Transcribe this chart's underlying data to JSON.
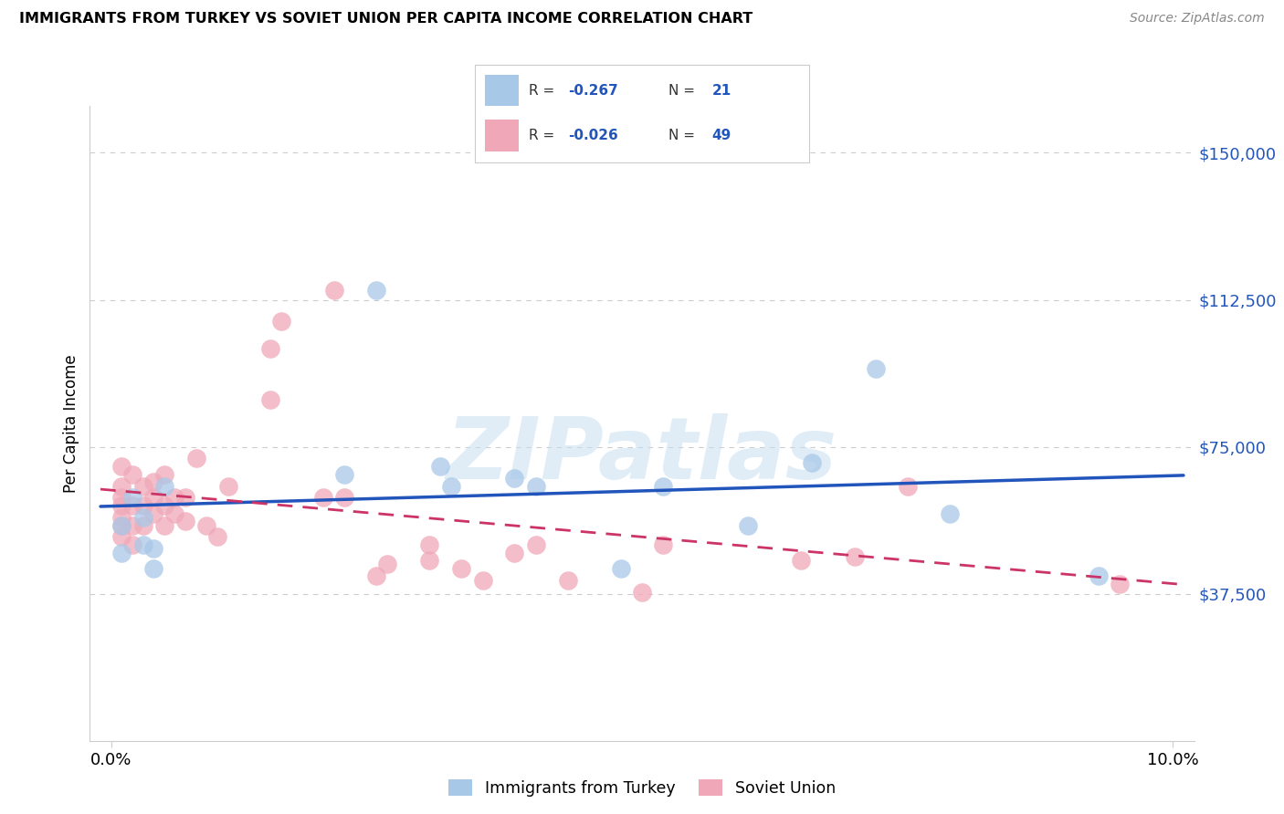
{
  "title": "IMMIGRANTS FROM TURKEY VS SOVIET UNION PER CAPITA INCOME CORRELATION CHART",
  "source": "Source: ZipAtlas.com",
  "ylabel": "Per Capita Income",
  "yticks": [
    37500,
    75000,
    112500,
    150000
  ],
  "ytick_labels": [
    "$37,500",
    "$75,000",
    "$112,500",
    "$150,000"
  ],
  "xlim": [
    -0.002,
    0.102
  ],
  "ylim": [
    0,
    162000
  ],
  "watermark": "ZIPatlas",
  "legend_label_blue": "Immigrants from Turkey",
  "legend_label_pink": "Soviet Union",
  "blue_color": "#a8c8e8",
  "pink_color": "#f0a8b8",
  "line_blue": "#2255bb",
  "line_pink": "#cc3366",
  "turkey_x": [
    0.001,
    0.001,
    0.002,
    0.003,
    0.003,
    0.004,
    0.004,
    0.005,
    0.022,
    0.025,
    0.031,
    0.032,
    0.038,
    0.04,
    0.048,
    0.052,
    0.06,
    0.066,
    0.072,
    0.079,
    0.093
  ],
  "turkey_y": [
    55000,
    48000,
    62000,
    57000,
    50000,
    49000,
    44000,
    65000,
    68000,
    115000,
    70000,
    65000,
    67000,
    65000,
    44000,
    65000,
    55000,
    71000,
    95000,
    58000,
    42000
  ],
  "soviet_x": [
    0.001,
    0.001,
    0.001,
    0.001,
    0.001,
    0.001,
    0.001,
    0.002,
    0.002,
    0.002,
    0.002,
    0.003,
    0.003,
    0.003,
    0.004,
    0.004,
    0.004,
    0.005,
    0.005,
    0.005,
    0.006,
    0.006,
    0.007,
    0.007,
    0.008,
    0.009,
    0.01,
    0.011,
    0.015,
    0.015,
    0.016,
    0.02,
    0.021,
    0.022,
    0.025,
    0.026,
    0.03,
    0.03,
    0.033,
    0.035,
    0.038,
    0.04,
    0.043,
    0.05,
    0.052,
    0.065,
    0.07,
    0.075,
    0.095
  ],
  "soviet_y": [
    52000,
    55000,
    57000,
    60000,
    62000,
    65000,
    70000,
    50000,
    55000,
    60000,
    68000,
    55000,
    60000,
    65000,
    58000,
    62000,
    66000,
    55000,
    60000,
    68000,
    58000,
    62000,
    56000,
    62000,
    72000,
    55000,
    52000,
    65000,
    87000,
    100000,
    107000,
    62000,
    115000,
    62000,
    42000,
    45000,
    50000,
    46000,
    44000,
    41000,
    48000,
    50000,
    41000,
    38000,
    50000,
    46000,
    47000,
    65000,
    40000
  ]
}
